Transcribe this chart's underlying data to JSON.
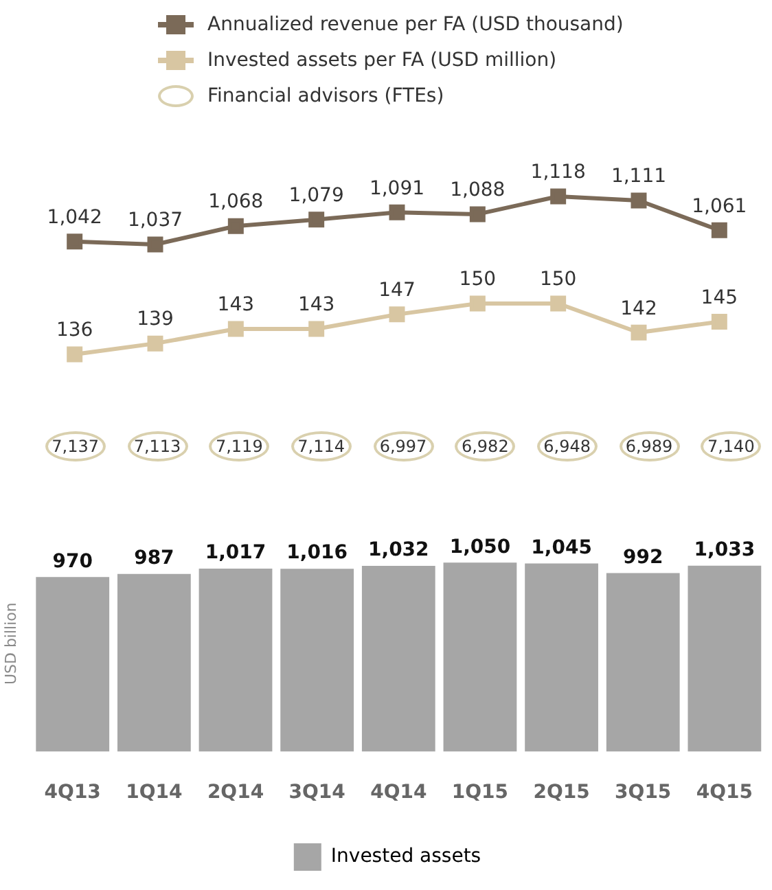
{
  "chart_data": [
    {
      "type": "line",
      "categories": [
        null,
        null,
        null,
        null,
        null,
        null,
        null,
        null,
        null
      ],
      "series": [
        {
          "name": "Annualized revenue per FA (USD thousand)",
          "color": "#7b6a58",
          "values": [
            1042,
            1037,
            1068,
            1079,
            1091,
            1088,
            1118,
            1111,
            1061
          ],
          "value_labels": [
            "1,042",
            "1,037",
            "1,068",
            "1,079",
            "1,091",
            "1,088",
            "1,118",
            "1,111",
            "1,061"
          ]
        }
      ],
      "marker": "square",
      "tick_labels": false,
      "legend": "top left"
    },
    {
      "type": "line",
      "categories": [
        null,
        null,
        null,
        null,
        null,
        null,
        null,
        null,
        null
      ],
      "series": [
        {
          "name": "Invested assets per FA (USD million)",
          "color": "#d8c6a2",
          "values": [
            136,
            139,
            143,
            143,
            147,
            150,
            150,
            142,
            145
          ],
          "value_labels": [
            "136",
            "139",
            "143",
            "143",
            "147",
            "150",
            "150",
            "142",
            "145"
          ]
        }
      ],
      "marker": "square",
      "tick_labels": false,
      "legend": "top left"
    },
    {
      "type": "other",
      "series": [
        {
          "name": "Financial advisors (FTEs)",
          "color": "#d9d0ae",
          "values": [
            7137,
            7113,
            7119,
            7114,
            6997,
            6982,
            6948,
            6989,
            7140
          ],
          "value_labels": [
            "7,137",
            "7,113",
            "7,119",
            "7,114",
            "6,997",
            "6,982",
            "6,948",
            "6,989",
            "7,140"
          ]
        }
      ],
      "legend": "top left"
    },
    {
      "type": "bar",
      "categories": [
        "4Q13",
        "1Q14",
        "2Q14",
        "3Q14",
        "4Q14",
        "1Q15",
        "2Q15",
        "3Q15",
        "4Q15"
      ],
      "series": [
        {
          "name": "Invested assets",
          "color": "#a6a6a6",
          "values": [
            970,
            987,
            1017,
            1016,
            1032,
            1050,
            1045,
            992,
            1033
          ],
          "value_labels": [
            "970",
            "987",
            "1,017",
            "1,016",
            "1,032",
            "1,050",
            "1,045",
            "992",
            "1,033"
          ]
        }
      ],
      "ylabel": "USD billion",
      "tick_labels": "x",
      "legend": "bottom"
    }
  ]
}
